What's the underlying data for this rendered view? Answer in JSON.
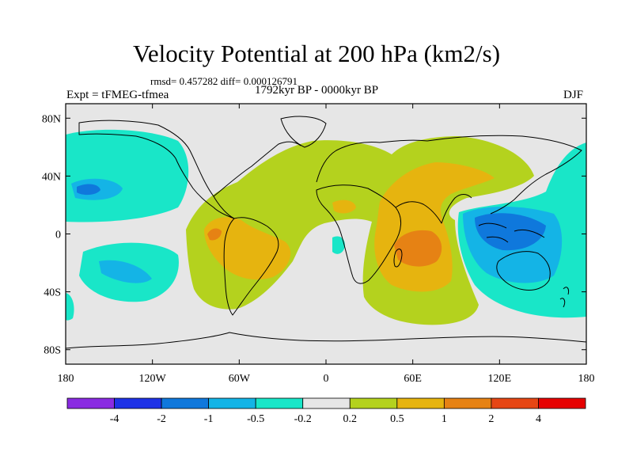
{
  "title": "Velocity Potential at 200 hPa (km2/s)",
  "stats_line": "rmsd= 0.457282 diff= 0.000126791",
  "period": "1792kyr BP - 0000kyr BP",
  "experiment": "Expt = tFMEG-tfmea",
  "season": "DJF",
  "lat_ticks": [
    {
      "label": "80N",
      "lat": 80
    },
    {
      "label": "40N",
      "lat": 40
    },
    {
      "label": "0",
      "lat": 0
    },
    {
      "label": "40S",
      "lat": -40
    },
    {
      "label": "80S",
      "lat": -80
    }
  ],
  "lon_ticks": [
    {
      "label": "180",
      "lon": -180
    },
    {
      "label": "120W",
      "lon": -120
    },
    {
      "label": "60W",
      "lon": -60
    },
    {
      "label": "0",
      "lon": 0
    },
    {
      "label": "60E",
      "lon": 60
    },
    {
      "label": "120E",
      "lon": 120
    },
    {
      "label": "180",
      "lon": 180
    }
  ],
  "colorbar": {
    "colors": [
      "#8a2be2",
      "#1e32e6",
      "#0f78dc",
      "#14b4e6",
      "#19e6c8",
      "#e6e6e6",
      "#b4d21e",
      "#e6b40f",
      "#e68214",
      "#e64614",
      "#e60000"
    ],
    "labels": [
      "-4",
      "-2",
      "-1",
      "-0.5",
      "-0.2",
      "0.2",
      "0.5",
      "1",
      "2",
      "4"
    ]
  },
  "colors": {
    "neutral": "#e6e6e6",
    "coast": "#000000"
  }
}
